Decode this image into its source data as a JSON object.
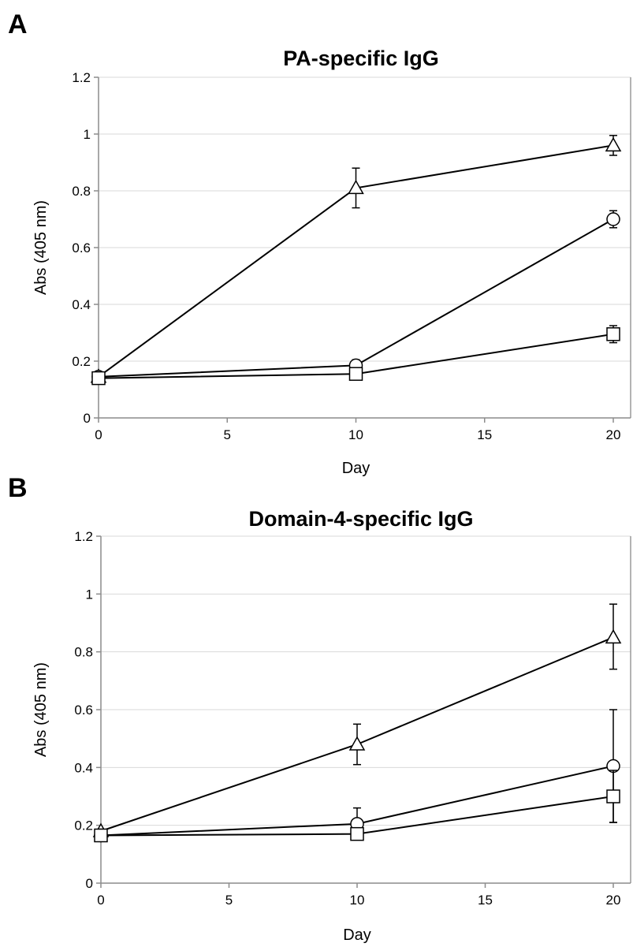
{
  "chart_data": [
    {
      "panel_letter": "A",
      "type": "line",
      "title": "PA-specific IgG",
      "xlabel": "Day",
      "ylabel": "Abs (405 nm)",
      "xlim": [
        0,
        20
      ],
      "ylim": [
        0,
        1.2
      ],
      "xticks": [
        0,
        5,
        10,
        15,
        20
      ],
      "xtick_labels": [
        "0",
        "5",
        "10",
        "15",
        "20"
      ],
      "yticks": [
        0,
        0.2,
        0.4,
        0.6,
        0.8,
        1,
        1.2
      ],
      "ytick_labels": [
        "0",
        "0.2",
        "0.4",
        "0.6",
        "0.8",
        "1",
        "1.2"
      ],
      "grid": true,
      "series": [
        {
          "marker": "triangle",
          "x": [
            0,
            10,
            20
          ],
          "y": [
            0.145,
            0.81,
            0.96
          ],
          "err_lo": [
            0,
            0.07,
            0.035
          ],
          "err_hi": [
            0,
            0.07,
            0.035
          ]
        },
        {
          "marker": "circle",
          "x": [
            0,
            10,
            20
          ],
          "y": [
            0.145,
            0.185,
            0.7
          ],
          "err_lo": [
            0,
            0.01,
            0.03
          ],
          "err_hi": [
            0,
            0.02,
            0.03
          ]
        },
        {
          "marker": "square",
          "x": [
            0,
            10,
            20
          ],
          "y": [
            0.14,
            0.155,
            0.295
          ],
          "err_lo": [
            0,
            0.01,
            0.03
          ],
          "err_hi": [
            0,
            0.01,
            0.03
          ]
        }
      ]
    },
    {
      "panel_letter": "B",
      "type": "line",
      "title": "Domain-4-specific IgG",
      "xlabel": "Day",
      "ylabel": "Abs (405 nm)",
      "xlim": [
        0,
        20
      ],
      "ylim": [
        0,
        1.2
      ],
      "xticks": [
        0,
        5,
        10,
        15,
        20
      ],
      "xtick_labels": [
        "0",
        "5",
        "10",
        "15",
        "20"
      ],
      "yticks": [
        0,
        0.2,
        0.4,
        0.6,
        0.8,
        1,
        1.2
      ],
      "ytick_labels": [
        "0",
        "0.2",
        "0.4",
        "0.6",
        "0.8",
        "1",
        "1.2"
      ],
      "grid": true,
      "series": [
        {
          "marker": "triangle",
          "x": [
            0,
            10,
            20
          ],
          "y": [
            0.18,
            0.48,
            0.85
          ],
          "err_lo": [
            0,
            0.07,
            0.11
          ],
          "err_hi": [
            0,
            0.07,
            0.115
          ]
        },
        {
          "marker": "circle",
          "x": [
            0,
            10,
            20
          ],
          "y": [
            0.165,
            0.205,
            0.405
          ],
          "err_lo": [
            0,
            0.03,
            0.195
          ],
          "err_hi": [
            0,
            0.055,
            0.195
          ]
        },
        {
          "marker": "square",
          "x": [
            0,
            10,
            20
          ],
          "y": [
            0.165,
            0.17,
            0.3
          ],
          "err_lo": [
            0,
            0.015,
            0.09
          ],
          "err_hi": [
            0,
            0.015,
            0.09
          ]
        }
      ]
    }
  ]
}
